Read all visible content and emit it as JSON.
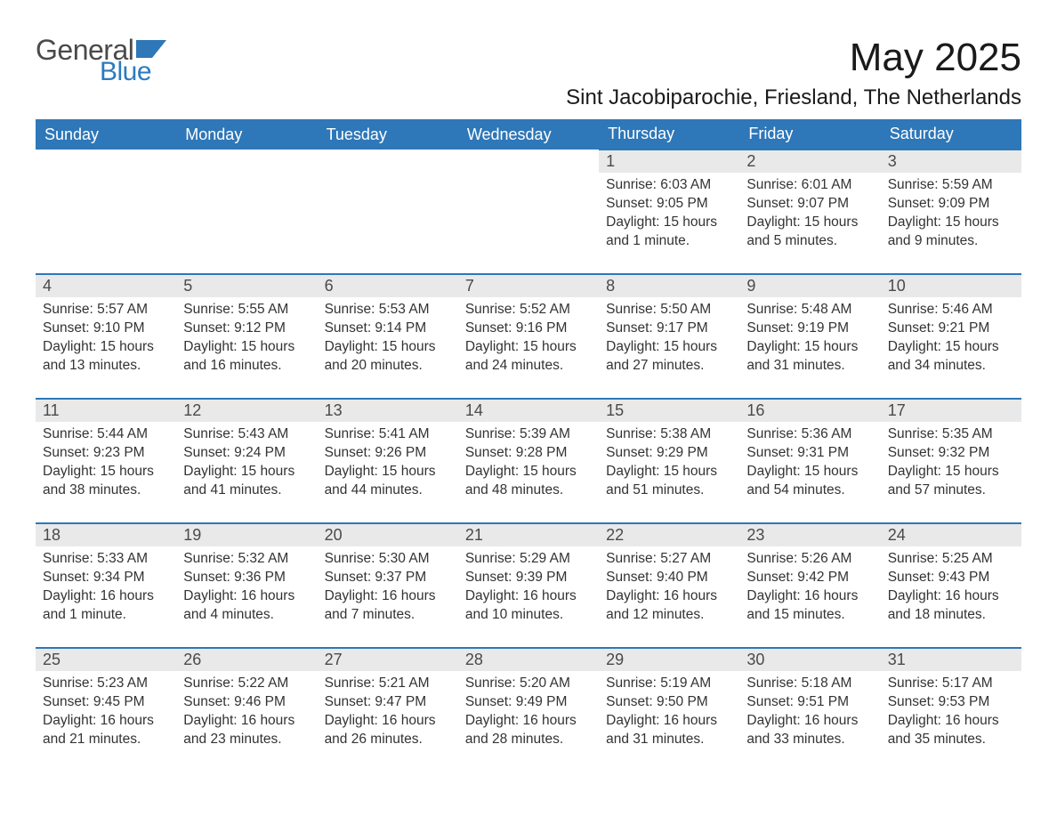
{
  "logo": {
    "text_general": "General",
    "text_blue": "Blue",
    "flag_color": "#2e77b8"
  },
  "header": {
    "month_title": "May 2025",
    "location": "Sint Jacobiparochie, Friesland, The Netherlands"
  },
  "colors": {
    "header_bg": "#2e77b8",
    "header_text": "#ffffff",
    "daynum_bg": "#e9e9e9",
    "border": "#2e77b8",
    "body_text": "#333333",
    "page_bg": "#ffffff"
  },
  "typography": {
    "month_title_size_pt": 33,
    "location_size_pt": 18,
    "weekday_size_pt": 14,
    "daynum_size_pt": 14,
    "cell_text_size_pt": 12
  },
  "weekdays": [
    "Sunday",
    "Monday",
    "Tuesday",
    "Wednesday",
    "Thursday",
    "Friday",
    "Saturday"
  ],
  "weeks": [
    [
      null,
      null,
      null,
      null,
      {
        "day": "1",
        "sunrise": "Sunrise: 6:03 AM",
        "sunset": "Sunset: 9:05 PM",
        "daylight": "Daylight: 15 hours and 1 minute."
      },
      {
        "day": "2",
        "sunrise": "Sunrise: 6:01 AM",
        "sunset": "Sunset: 9:07 PM",
        "daylight": "Daylight: 15 hours and 5 minutes."
      },
      {
        "day": "3",
        "sunrise": "Sunrise: 5:59 AM",
        "sunset": "Sunset: 9:09 PM",
        "daylight": "Daylight: 15 hours and 9 minutes."
      }
    ],
    [
      {
        "day": "4",
        "sunrise": "Sunrise: 5:57 AM",
        "sunset": "Sunset: 9:10 PM",
        "daylight": "Daylight: 15 hours and 13 minutes."
      },
      {
        "day": "5",
        "sunrise": "Sunrise: 5:55 AM",
        "sunset": "Sunset: 9:12 PM",
        "daylight": "Daylight: 15 hours and 16 minutes."
      },
      {
        "day": "6",
        "sunrise": "Sunrise: 5:53 AM",
        "sunset": "Sunset: 9:14 PM",
        "daylight": "Daylight: 15 hours and 20 minutes."
      },
      {
        "day": "7",
        "sunrise": "Sunrise: 5:52 AM",
        "sunset": "Sunset: 9:16 PM",
        "daylight": "Daylight: 15 hours and 24 minutes."
      },
      {
        "day": "8",
        "sunrise": "Sunrise: 5:50 AM",
        "sunset": "Sunset: 9:17 PM",
        "daylight": "Daylight: 15 hours and 27 minutes."
      },
      {
        "day": "9",
        "sunrise": "Sunrise: 5:48 AM",
        "sunset": "Sunset: 9:19 PM",
        "daylight": "Daylight: 15 hours and 31 minutes."
      },
      {
        "day": "10",
        "sunrise": "Sunrise: 5:46 AM",
        "sunset": "Sunset: 9:21 PM",
        "daylight": "Daylight: 15 hours and 34 minutes."
      }
    ],
    [
      {
        "day": "11",
        "sunrise": "Sunrise: 5:44 AM",
        "sunset": "Sunset: 9:23 PM",
        "daylight": "Daylight: 15 hours and 38 minutes."
      },
      {
        "day": "12",
        "sunrise": "Sunrise: 5:43 AM",
        "sunset": "Sunset: 9:24 PM",
        "daylight": "Daylight: 15 hours and 41 minutes."
      },
      {
        "day": "13",
        "sunrise": "Sunrise: 5:41 AM",
        "sunset": "Sunset: 9:26 PM",
        "daylight": "Daylight: 15 hours and 44 minutes."
      },
      {
        "day": "14",
        "sunrise": "Sunrise: 5:39 AM",
        "sunset": "Sunset: 9:28 PM",
        "daylight": "Daylight: 15 hours and 48 minutes."
      },
      {
        "day": "15",
        "sunrise": "Sunrise: 5:38 AM",
        "sunset": "Sunset: 9:29 PM",
        "daylight": "Daylight: 15 hours and 51 minutes."
      },
      {
        "day": "16",
        "sunrise": "Sunrise: 5:36 AM",
        "sunset": "Sunset: 9:31 PM",
        "daylight": "Daylight: 15 hours and 54 minutes."
      },
      {
        "day": "17",
        "sunrise": "Sunrise: 5:35 AM",
        "sunset": "Sunset: 9:32 PM",
        "daylight": "Daylight: 15 hours and 57 minutes."
      }
    ],
    [
      {
        "day": "18",
        "sunrise": "Sunrise: 5:33 AM",
        "sunset": "Sunset: 9:34 PM",
        "daylight": "Daylight: 16 hours and 1 minute."
      },
      {
        "day": "19",
        "sunrise": "Sunrise: 5:32 AM",
        "sunset": "Sunset: 9:36 PM",
        "daylight": "Daylight: 16 hours and 4 minutes."
      },
      {
        "day": "20",
        "sunrise": "Sunrise: 5:30 AM",
        "sunset": "Sunset: 9:37 PM",
        "daylight": "Daylight: 16 hours and 7 minutes."
      },
      {
        "day": "21",
        "sunrise": "Sunrise: 5:29 AM",
        "sunset": "Sunset: 9:39 PM",
        "daylight": "Daylight: 16 hours and 10 minutes."
      },
      {
        "day": "22",
        "sunrise": "Sunrise: 5:27 AM",
        "sunset": "Sunset: 9:40 PM",
        "daylight": "Daylight: 16 hours and 12 minutes."
      },
      {
        "day": "23",
        "sunrise": "Sunrise: 5:26 AM",
        "sunset": "Sunset: 9:42 PM",
        "daylight": "Daylight: 16 hours and 15 minutes."
      },
      {
        "day": "24",
        "sunrise": "Sunrise: 5:25 AM",
        "sunset": "Sunset: 9:43 PM",
        "daylight": "Daylight: 16 hours and 18 minutes."
      }
    ],
    [
      {
        "day": "25",
        "sunrise": "Sunrise: 5:23 AM",
        "sunset": "Sunset: 9:45 PM",
        "daylight": "Daylight: 16 hours and 21 minutes."
      },
      {
        "day": "26",
        "sunrise": "Sunrise: 5:22 AM",
        "sunset": "Sunset: 9:46 PM",
        "daylight": "Daylight: 16 hours and 23 minutes."
      },
      {
        "day": "27",
        "sunrise": "Sunrise: 5:21 AM",
        "sunset": "Sunset: 9:47 PM",
        "daylight": "Daylight: 16 hours and 26 minutes."
      },
      {
        "day": "28",
        "sunrise": "Sunrise: 5:20 AM",
        "sunset": "Sunset: 9:49 PM",
        "daylight": "Daylight: 16 hours and 28 minutes."
      },
      {
        "day": "29",
        "sunrise": "Sunrise: 5:19 AM",
        "sunset": "Sunset: 9:50 PM",
        "daylight": "Daylight: 16 hours and 31 minutes."
      },
      {
        "day": "30",
        "sunrise": "Sunrise: 5:18 AM",
        "sunset": "Sunset: 9:51 PM",
        "daylight": "Daylight: 16 hours and 33 minutes."
      },
      {
        "day": "31",
        "sunrise": "Sunrise: 5:17 AM",
        "sunset": "Sunset: 9:53 PM",
        "daylight": "Daylight: 16 hours and 35 minutes."
      }
    ]
  ]
}
